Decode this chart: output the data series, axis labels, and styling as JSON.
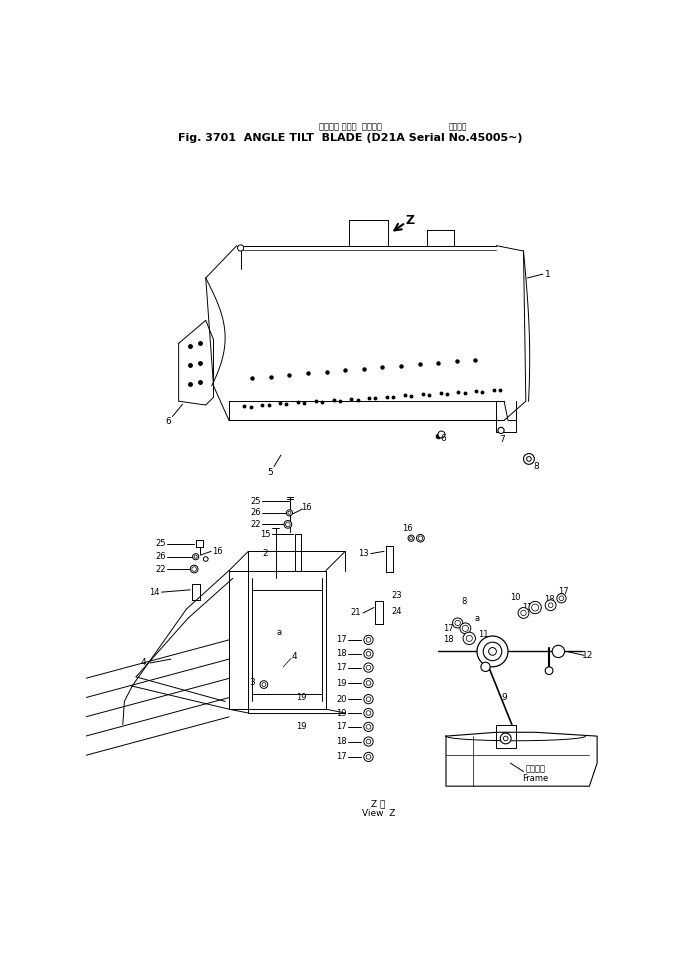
{
  "title_line1": "アングル チルト  ブレード",
  "title_sub": "通常号機",
  "title_line2": "Fig. 3701  ANGLE TILT  BLADE (D21A Serial No.45005~)",
  "bg_color": "#ffffff",
  "line_color": "#000000"
}
